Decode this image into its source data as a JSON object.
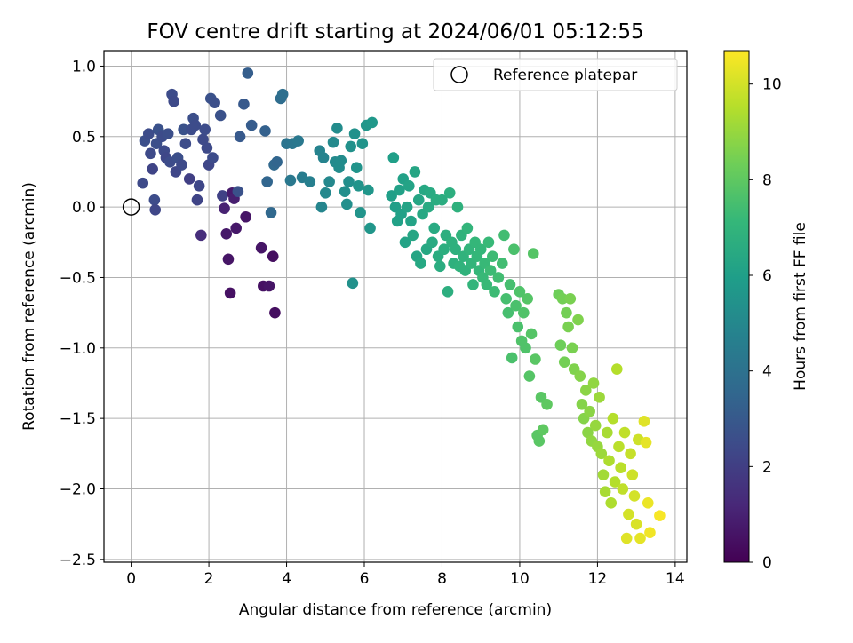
{
  "chart_data": {
    "type": "scatter",
    "title": "FOV centre drift starting at 2024/06/01 05:12:55",
    "xlabel": "Angular distance from reference (arcmin)",
    "ylabel": "Rotation from reference (arcmin)",
    "xlim": [
      -0.7,
      14.3
    ],
    "ylim": [
      -2.52,
      1.11
    ],
    "xticks": [
      0,
      2,
      4,
      6,
      8,
      10,
      12,
      14
    ],
    "xtick_labels": [
      "0",
      "2",
      "4",
      "6",
      "8",
      "10",
      "12",
      "14"
    ],
    "yticks": [
      -2.5,
      -2.0,
      -1.5,
      -1.0,
      -0.5,
      0.0,
      0.5,
      1.0
    ],
    "ytick_labels": [
      "−2.5",
      "−2.0",
      "−1.5",
      "−1.0",
      "−0.5",
      "0.0",
      "0.5",
      "1.0"
    ],
    "grid": true,
    "legend": {
      "position": "top-right",
      "entries": [
        {
          "label": "Reference platepar",
          "marker": "open-circle"
        }
      ]
    },
    "reference_point": {
      "x": 0,
      "y": 0
    },
    "colorbar": {
      "label": "Hours from first FF file",
      "range": [
        0,
        10.7
      ],
      "ticks": [
        0,
        2,
        4,
        6,
        8,
        10
      ],
      "tick_labels": [
        "0",
        "2",
        "4",
        "6",
        "8",
        "10"
      ],
      "colormap": "viridis",
      "colors": [
        "#440154",
        "#482878",
        "#3e4989",
        "#31688e",
        "#26828e",
        "#1f9e89",
        "#35b779",
        "#6ece58",
        "#b5de2b",
        "#fde725"
      ]
    },
    "point_color_encodes": "Hours from first FF file",
    "points": [
      {
        "x": 0.3,
        "y": 0.17,
        "t": 2.4
      },
      {
        "x": 0.35,
        "y": 0.47,
        "t": 2.6
      },
      {
        "x": 0.45,
        "y": 0.52,
        "t": 2.5
      },
      {
        "x": 0.5,
        "y": 0.38,
        "t": 2.4
      },
      {
        "x": 0.55,
        "y": 0.27,
        "t": 2.2
      },
      {
        "x": 0.6,
        "y": 0.05,
        "t": 2.5
      },
      {
        "x": 0.62,
        "y": -0.02,
        "t": 2.3
      },
      {
        "x": 0.65,
        "y": 0.45,
        "t": 2.6
      },
      {
        "x": 0.7,
        "y": 0.55,
        "t": 2.7
      },
      {
        "x": 0.8,
        "y": 0.5,
        "t": 2.5
      },
      {
        "x": 0.85,
        "y": 0.4,
        "t": 2.4
      },
      {
        "x": 0.9,
        "y": 0.35,
        "t": 2.3
      },
      {
        "x": 0.95,
        "y": 0.52,
        "t": 2.6
      },
      {
        "x": 1.0,
        "y": 0.32,
        "t": 2.5
      },
      {
        "x": 1.05,
        "y": 0.8,
        "t": 2.5
      },
      {
        "x": 1.1,
        "y": 0.75,
        "t": 2.4
      },
      {
        "x": 1.15,
        "y": 0.25,
        "t": 2.3
      },
      {
        "x": 1.2,
        "y": 0.35,
        "t": 2.6
      },
      {
        "x": 1.3,
        "y": 0.3,
        "t": 2.4
      },
      {
        "x": 1.35,
        "y": 0.55,
        "t": 2.7
      },
      {
        "x": 1.4,
        "y": 0.45,
        "t": 2.5
      },
      {
        "x": 1.5,
        "y": 0.2,
        "t": 2.0
      },
      {
        "x": 1.55,
        "y": 0.55,
        "t": 2.5
      },
      {
        "x": 1.6,
        "y": 0.63,
        "t": 2.6
      },
      {
        "x": 1.65,
        "y": 0.58,
        "t": 2.5
      },
      {
        "x": 1.7,
        "y": 0.05,
        "t": 2.2
      },
      {
        "x": 1.75,
        "y": 0.15,
        "t": 2.3
      },
      {
        "x": 1.8,
        "y": -0.2,
        "t": 1.4
      },
      {
        "x": 1.85,
        "y": 0.48,
        "t": 2.4
      },
      {
        "x": 1.9,
        "y": 0.55,
        "t": 2.5
      },
      {
        "x": 1.95,
        "y": 0.42,
        "t": 2.4
      },
      {
        "x": 2.0,
        "y": 0.3,
        "t": 2.3
      },
      {
        "x": 2.05,
        "y": 0.77,
        "t": 2.7
      },
      {
        "x": 2.1,
        "y": 0.35,
        "t": 2.5
      },
      {
        "x": 2.15,
        "y": 0.74,
        "t": 2.6
      },
      {
        "x": 2.3,
        "y": 0.65,
        "t": 2.7
      },
      {
        "x": 2.35,
        "y": 0.08,
        "t": 2.1
      },
      {
        "x": 2.4,
        "y": -0.01,
        "t": 1.0
      },
      {
        "x": 2.45,
        "y": -0.19,
        "t": 0.7
      },
      {
        "x": 2.5,
        "y": -0.37,
        "t": 0.6
      },
      {
        "x": 2.55,
        "y": -0.61,
        "t": 0.5
      },
      {
        "x": 2.6,
        "y": 0.1,
        "t": 0.8
      },
      {
        "x": 2.65,
        "y": 0.06,
        "t": 0.9
      },
      {
        "x": 2.7,
        "y": -0.15,
        "t": 0.7
      },
      {
        "x": 2.75,
        "y": 0.11,
        "t": 2.7
      },
      {
        "x": 2.8,
        "y": 0.5,
        "t": 3.0
      },
      {
        "x": 2.9,
        "y": 0.73,
        "t": 3.0
      },
      {
        "x": 2.95,
        "y": -0.07,
        "t": 0.6
      },
      {
        "x": 3.0,
        "y": 0.95,
        "t": 3.2
      },
      {
        "x": 3.1,
        "y": 0.58,
        "t": 3.1
      },
      {
        "x": 3.35,
        "y": -0.29,
        "t": 0.6
      },
      {
        "x": 3.4,
        "y": -0.56,
        "t": 0.5
      },
      {
        "x": 3.45,
        "y": 0.54,
        "t": 3.3
      },
      {
        "x": 3.5,
        "y": 0.18,
        "t": 3.5
      },
      {
        "x": 3.55,
        "y": -0.56,
        "t": 0.6
      },
      {
        "x": 3.6,
        "y": -0.04,
        "t": 3.6
      },
      {
        "x": 3.65,
        "y": -0.35,
        "t": 0.4
      },
      {
        "x": 3.68,
        "y": 0.3,
        "t": 3.6
      },
      {
        "x": 3.7,
        "y": -0.75,
        "t": 0.4
      },
      {
        "x": 3.75,
        "y": 0.32,
        "t": 3.5
      },
      {
        "x": 3.85,
        "y": 0.77,
        "t": 3.8
      },
      {
        "x": 3.9,
        "y": 0.8,
        "t": 3.9
      },
      {
        "x": 4.0,
        "y": 0.45,
        "t": 4.1
      },
      {
        "x": 4.1,
        "y": 0.19,
        "t": 4.3
      },
      {
        "x": 4.15,
        "y": 0.45,
        "t": 4.2
      },
      {
        "x": 4.3,
        "y": 0.47,
        "t": 4.3
      },
      {
        "x": 4.4,
        "y": 0.21,
        "t": 4.5
      },
      {
        "x": 4.6,
        "y": 0.18,
        "t": 4.6
      },
      {
        "x": 4.85,
        "y": 0.4,
        "t": 4.8
      },
      {
        "x": 4.9,
        "y": 0.0,
        "t": 4.9
      },
      {
        "x": 4.95,
        "y": 0.35,
        "t": 4.8
      },
      {
        "x": 5.0,
        "y": 0.1,
        "t": 5.0
      },
      {
        "x": 5.1,
        "y": 0.18,
        "t": 5.0
      },
      {
        "x": 5.2,
        "y": 0.46,
        "t": 5.1
      },
      {
        "x": 5.25,
        "y": 0.32,
        "t": 5.1
      },
      {
        "x": 5.3,
        "y": 0.56,
        "t": 5.2
      },
      {
        "x": 5.35,
        "y": 0.28,
        "t": 5.2
      },
      {
        "x": 5.4,
        "y": 0.33,
        "t": 5.2
      },
      {
        "x": 5.5,
        "y": 0.11,
        "t": 5.3
      },
      {
        "x": 5.55,
        "y": 0.02,
        "t": 5.3
      },
      {
        "x": 5.6,
        "y": 0.18,
        "t": 5.3
      },
      {
        "x": 5.65,
        "y": 0.43,
        "t": 5.4
      },
      {
        "x": 5.7,
        "y": -0.54,
        "t": 5.4
      },
      {
        "x": 5.75,
        "y": 0.52,
        "t": 5.4
      },
      {
        "x": 5.8,
        "y": 0.28,
        "t": 5.5
      },
      {
        "x": 5.85,
        "y": 0.15,
        "t": 5.5
      },
      {
        "x": 5.9,
        "y": -0.04,
        "t": 5.5
      },
      {
        "x": 5.95,
        "y": 0.45,
        "t": 5.5
      },
      {
        "x": 6.05,
        "y": 0.58,
        "t": 5.6
      },
      {
        "x": 6.1,
        "y": 0.12,
        "t": 5.6
      },
      {
        "x": 6.15,
        "y": -0.15,
        "t": 5.6
      },
      {
        "x": 6.2,
        "y": 0.6,
        "t": 5.7
      },
      {
        "x": 6.7,
        "y": 0.08,
        "t": 6.0
      },
      {
        "x": 6.75,
        "y": 0.35,
        "t": 6.0
      },
      {
        "x": 6.8,
        "y": 0.0,
        "t": 6.0
      },
      {
        "x": 6.85,
        "y": -0.1,
        "t": 6.1
      },
      {
        "x": 6.9,
        "y": 0.12,
        "t": 6.1
      },
      {
        "x": 6.95,
        "y": -0.05,
        "t": 6.1
      },
      {
        "x": 7.0,
        "y": 0.2,
        "t": 6.1
      },
      {
        "x": 7.05,
        "y": -0.25,
        "t": 6.2
      },
      {
        "x": 7.1,
        "y": 0.0,
        "t": 6.2
      },
      {
        "x": 7.15,
        "y": 0.15,
        "t": 6.2
      },
      {
        "x": 7.2,
        "y": -0.1,
        "t": 6.2
      },
      {
        "x": 7.25,
        "y": -0.2,
        "t": 6.3
      },
      {
        "x": 7.3,
        "y": 0.25,
        "t": 6.3
      },
      {
        "x": 7.35,
        "y": -0.35,
        "t": 6.3
      },
      {
        "x": 7.4,
        "y": 0.05,
        "t": 6.3
      },
      {
        "x": 7.45,
        "y": -0.4,
        "t": 6.4
      },
      {
        "x": 7.5,
        "y": -0.05,
        "t": 6.4
      },
      {
        "x": 7.55,
        "y": 0.12,
        "t": 6.4
      },
      {
        "x": 7.6,
        "y": -0.3,
        "t": 6.4
      },
      {
        "x": 7.65,
        "y": 0.0,
        "t": 6.5
      },
      {
        "x": 7.7,
        "y": 0.1,
        "t": 6.5
      },
      {
        "x": 7.75,
        "y": -0.25,
        "t": 6.5
      },
      {
        "x": 7.8,
        "y": -0.15,
        "t": 6.5
      },
      {
        "x": 7.85,
        "y": 0.05,
        "t": 6.6
      },
      {
        "x": 7.9,
        "y": -0.35,
        "t": 6.6
      },
      {
        "x": 7.95,
        "y": -0.42,
        "t": 6.6
      },
      {
        "x": 8.0,
        "y": 0.05,
        "t": 6.6
      },
      {
        "x": 8.05,
        "y": -0.3,
        "t": 6.7
      },
      {
        "x": 8.1,
        "y": -0.2,
        "t": 6.7
      },
      {
        "x": 8.15,
        "y": -0.6,
        "t": 6.7
      },
      {
        "x": 8.2,
        "y": 0.1,
        "t": 6.7
      },
      {
        "x": 8.25,
        "y": -0.25,
        "t": 6.8
      },
      {
        "x": 8.3,
        "y": -0.4,
        "t": 6.8
      },
      {
        "x": 8.35,
        "y": -0.3,
        "t": 6.8
      },
      {
        "x": 8.4,
        "y": 0.0,
        "t": 6.8
      },
      {
        "x": 8.45,
        "y": -0.42,
        "t": 6.9
      },
      {
        "x": 8.5,
        "y": -0.2,
        "t": 6.9
      },
      {
        "x": 8.55,
        "y": -0.35,
        "t": 6.9
      },
      {
        "x": 8.6,
        "y": -0.45,
        "t": 6.9
      },
      {
        "x": 8.65,
        "y": -0.15,
        "t": 7.0
      },
      {
        "x": 8.7,
        "y": -0.3,
        "t": 7.0
      },
      {
        "x": 8.75,
        "y": -0.4,
        "t": 7.0
      },
      {
        "x": 8.8,
        "y": -0.55,
        "t": 7.0
      },
      {
        "x": 8.85,
        "y": -0.25,
        "t": 7.1
      },
      {
        "x": 8.9,
        "y": -0.35,
        "t": 7.1
      },
      {
        "x": 8.95,
        "y": -0.45,
        "t": 7.1
      },
      {
        "x": 9.0,
        "y": -0.3,
        "t": 7.1
      },
      {
        "x": 9.05,
        "y": -0.5,
        "t": 7.2
      },
      {
        "x": 9.1,
        "y": -0.4,
        "t": 7.2
      },
      {
        "x": 9.15,
        "y": -0.55,
        "t": 7.2
      },
      {
        "x": 9.2,
        "y": -0.25,
        "t": 7.2
      },
      {
        "x": 9.25,
        "y": -0.45,
        "t": 7.3
      },
      {
        "x": 9.3,
        "y": -0.35,
        "t": 7.3
      },
      {
        "x": 9.35,
        "y": -0.6,
        "t": 7.3
      },
      {
        "x": 9.45,
        "y": -0.5,
        "t": 7.4
      },
      {
        "x": 9.55,
        "y": -0.4,
        "t": 7.4
      },
      {
        "x": 9.6,
        "y": -0.2,
        "t": 7.4
      },
      {
        "x": 9.65,
        "y": -0.65,
        "t": 7.5
      },
      {
        "x": 9.7,
        "y": -0.75,
        "t": 7.5
      },
      {
        "x": 9.75,
        "y": -0.55,
        "t": 7.5
      },
      {
        "x": 9.8,
        "y": -1.07,
        "t": 7.6
      },
      {
        "x": 9.85,
        "y": -0.3,
        "t": 7.6
      },
      {
        "x": 9.9,
        "y": -0.7,
        "t": 7.6
      },
      {
        "x": 9.95,
        "y": -0.85,
        "t": 7.6
      },
      {
        "x": 10.0,
        "y": -0.6,
        "t": 7.7
      },
      {
        "x": 10.05,
        "y": -0.95,
        "t": 7.7
      },
      {
        "x": 10.1,
        "y": -0.75,
        "t": 7.7
      },
      {
        "x": 10.15,
        "y": -1.0,
        "t": 7.7
      },
      {
        "x": 10.2,
        "y": -0.65,
        "t": 7.8
      },
      {
        "x": 10.25,
        "y": -1.2,
        "t": 7.8
      },
      {
        "x": 10.3,
        "y": -0.9,
        "t": 7.8
      },
      {
        "x": 10.35,
        "y": -0.33,
        "t": 7.8
      },
      {
        "x": 10.4,
        "y": -1.08,
        "t": 7.9
      },
      {
        "x": 10.45,
        "y": -1.62,
        "t": 7.9
      },
      {
        "x": 10.5,
        "y": -1.66,
        "t": 7.9
      },
      {
        "x": 10.55,
        "y": -1.35,
        "t": 7.9
      },
      {
        "x": 10.6,
        "y": -1.58,
        "t": 8.0
      },
      {
        "x": 10.7,
        "y": -1.4,
        "t": 8.0
      },
      {
        "x": 11.0,
        "y": -0.62,
        "t": 8.3
      },
      {
        "x": 11.05,
        "y": -0.98,
        "t": 8.3
      },
      {
        "x": 11.1,
        "y": -0.65,
        "t": 8.4
      },
      {
        "x": 11.15,
        "y": -1.1,
        "t": 8.4
      },
      {
        "x": 11.2,
        "y": -0.75,
        "t": 8.4
      },
      {
        "x": 11.25,
        "y": -0.85,
        "t": 8.5
      },
      {
        "x": 11.3,
        "y": -0.65,
        "t": 8.5
      },
      {
        "x": 11.35,
        "y": -1.0,
        "t": 8.5
      },
      {
        "x": 11.4,
        "y": -1.15,
        "t": 8.6
      },
      {
        "x": 11.5,
        "y": -0.8,
        "t": 8.6
      },
      {
        "x": 11.55,
        "y": -1.2,
        "t": 8.7
      },
      {
        "x": 11.6,
        "y": -1.4,
        "t": 8.7
      },
      {
        "x": 11.65,
        "y": -1.5,
        "t": 8.7
      },
      {
        "x": 11.7,
        "y": -1.3,
        "t": 8.8
      },
      {
        "x": 11.75,
        "y": -1.6,
        "t": 8.8
      },
      {
        "x": 11.8,
        "y": -1.45,
        "t": 8.8
      },
      {
        "x": 11.85,
        "y": -1.66,
        "t": 8.9
      },
      {
        "x": 11.9,
        "y": -1.25,
        "t": 8.9
      },
      {
        "x": 11.95,
        "y": -1.55,
        "t": 9.0
      },
      {
        "x": 12.0,
        "y": -1.7,
        "t": 9.0
      },
      {
        "x": 12.05,
        "y": -1.35,
        "t": 9.1
      },
      {
        "x": 12.1,
        "y": -1.75,
        "t": 9.1
      },
      {
        "x": 12.15,
        "y": -1.9,
        "t": 9.2
      },
      {
        "x": 12.2,
        "y": -2.02,
        "t": 9.3
      },
      {
        "x": 12.25,
        "y": -1.6,
        "t": 9.3
      },
      {
        "x": 12.3,
        "y": -1.8,
        "t": 9.4
      },
      {
        "x": 12.35,
        "y": -2.1,
        "t": 9.4
      },
      {
        "x": 12.4,
        "y": -1.5,
        "t": 9.5
      },
      {
        "x": 12.45,
        "y": -1.95,
        "t": 9.5
      },
      {
        "x": 12.5,
        "y": -1.15,
        "t": 9.5
      },
      {
        "x": 12.55,
        "y": -1.7,
        "t": 9.6
      },
      {
        "x": 12.6,
        "y": -1.85,
        "t": 9.6
      },
      {
        "x": 12.65,
        "y": -2.0,
        "t": 9.7
      },
      {
        "x": 12.7,
        "y": -1.6,
        "t": 9.7
      },
      {
        "x": 12.75,
        "y": -2.35,
        "t": 10.2
      },
      {
        "x": 12.8,
        "y": -2.18,
        "t": 10.0
      },
      {
        "x": 12.85,
        "y": -1.75,
        "t": 9.8
      },
      {
        "x": 12.9,
        "y": -1.9,
        "t": 9.9
      },
      {
        "x": 12.95,
        "y": -2.05,
        "t": 10.0
      },
      {
        "x": 13.0,
        "y": -2.25,
        "t": 10.1
      },
      {
        "x": 13.05,
        "y": -1.65,
        "t": 9.9
      },
      {
        "x": 13.1,
        "y": -2.35,
        "t": 10.3
      },
      {
        "x": 13.2,
        "y": -1.52,
        "t": 10.2
      },
      {
        "x": 13.25,
        "y": -1.67,
        "t": 10.3
      },
      {
        "x": 13.3,
        "y": -2.1,
        "t": 10.4
      },
      {
        "x": 13.35,
        "y": -2.31,
        "t": 10.5
      },
      {
        "x": 13.6,
        "y": -2.19,
        "t": 10.6
      }
    ]
  }
}
